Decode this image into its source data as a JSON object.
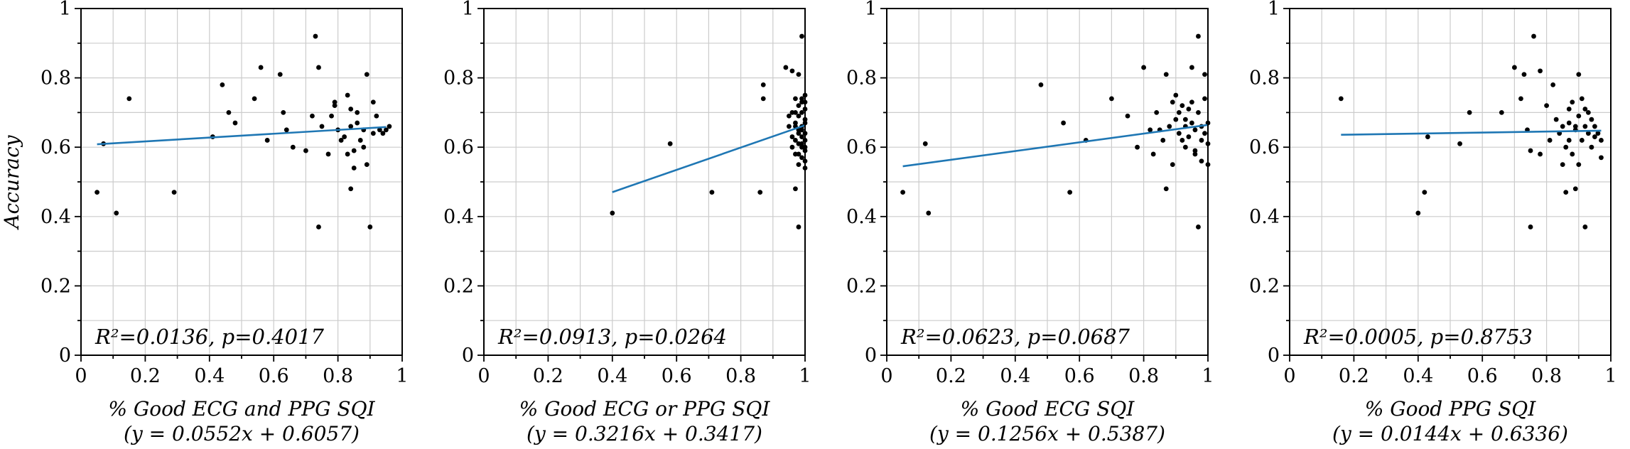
{
  "chart_data": [
    {
      "type": "scatter",
      "title": "",
      "xlabel": "% Good ECG and PPG SQI",
      "equation": "(y = 0.0552x + 0.6057)",
      "ylabel": "Accuracy",
      "annotation": "R²=0.0136, p=0.4017",
      "xlim": [
        0,
        1
      ],
      "ylim": [
        0,
        1
      ],
      "xticks": [
        "0",
        "0.2",
        "0.4",
        "0.6",
        "0.8",
        "1"
      ],
      "yticks": [
        "0",
        "0.2",
        "0.4",
        "0.6",
        "0.8",
        "1"
      ],
      "grid": true,
      "fit": {
        "slope": 0.0552,
        "intercept": 0.6057,
        "x_range": [
          0.05,
          0.95
        ]
      },
      "points": [
        [
          0.05,
          0.47
        ],
        [
          0.07,
          0.61
        ],
        [
          0.11,
          0.41
        ],
        [
          0.15,
          0.74
        ],
        [
          0.29,
          0.47
        ],
        [
          0.41,
          0.63
        ],
        [
          0.44,
          0.78
        ],
        [
          0.46,
          0.7
        ],
        [
          0.48,
          0.67
        ],
        [
          0.54,
          0.74
        ],
        [
          0.56,
          0.83
        ],
        [
          0.58,
          0.62
        ],
        [
          0.62,
          0.81
        ],
        [
          0.63,
          0.7
        ],
        [
          0.64,
          0.65
        ],
        [
          0.66,
          0.6
        ],
        [
          0.7,
          0.59
        ],
        [
          0.72,
          0.69
        ],
        [
          0.73,
          0.92
        ],
        [
          0.74,
          0.83
        ],
        [
          0.74,
          0.37
        ],
        [
          0.75,
          0.66
        ],
        [
          0.77,
          0.58
        ],
        [
          0.78,
          0.69
        ],
        [
          0.79,
          0.72
        ],
        [
          0.79,
          0.73
        ],
        [
          0.8,
          0.65
        ],
        [
          0.81,
          0.62
        ],
        [
          0.82,
          0.63
        ],
        [
          0.83,
          0.58
        ],
        [
          0.83,
          0.75
        ],
        [
          0.84,
          0.71
        ],
        [
          0.84,
          0.66
        ],
        [
          0.84,
          0.48
        ],
        [
          0.85,
          0.59
        ],
        [
          0.85,
          0.54
        ],
        [
          0.86,
          0.7
        ],
        [
          0.86,
          0.67
        ],
        [
          0.87,
          0.62
        ],
        [
          0.88,
          0.6
        ],
        [
          0.88,
          0.65
        ],
        [
          0.89,
          0.81
        ],
        [
          0.89,
          0.55
        ],
        [
          0.9,
          0.37
        ],
        [
          0.91,
          0.64
        ],
        [
          0.91,
          0.73
        ],
        [
          0.92,
          0.69
        ],
        [
          0.93,
          0.65
        ],
        [
          0.94,
          0.64
        ],
        [
          0.95,
          0.65
        ],
        [
          0.96,
          0.66
        ]
      ]
    },
    {
      "type": "scatter",
      "title": "",
      "xlabel": "% Good ECG or PPG SQI",
      "equation": "(y = 0.3216x + 0.3417)",
      "ylabel": "",
      "annotation": "R²=0.0913, p=0.0264",
      "xlim": [
        0,
        1
      ],
      "ylim": [
        0,
        1
      ],
      "xticks": [
        "0",
        "0.2",
        "0.4",
        "0.6",
        "0.8",
        "1"
      ],
      "yticks": [
        "0",
        "0.2",
        "0.4",
        "0.6",
        "0.8",
        "1"
      ],
      "grid": true,
      "fit": {
        "slope": 0.3216,
        "intercept": 0.3417,
        "x_range": [
          0.4,
          1.0
        ]
      },
      "points": [
        [
          0.4,
          0.41
        ],
        [
          0.58,
          0.61
        ],
        [
          0.71,
          0.47
        ],
        [
          0.86,
          0.47
        ],
        [
          0.87,
          0.78
        ],
        [
          0.87,
          0.74
        ],
        [
          0.94,
          0.83
        ],
        [
          0.95,
          0.69
        ],
        [
          0.95,
          0.66
        ],
        [
          0.96,
          0.82
        ],
        [
          0.96,
          0.63
        ],
        [
          0.96,
          0.6
        ],
        [
          0.97,
          0.48
        ],
        [
          0.97,
          0.74
        ],
        [
          0.97,
          0.7
        ],
        [
          0.97,
          0.67
        ],
        [
          0.97,
          0.62
        ],
        [
          0.97,
          0.58
        ],
        [
          0.98,
          0.72
        ],
        [
          0.98,
          0.69
        ],
        [
          0.98,
          0.65
        ],
        [
          0.98,
          0.61
        ],
        [
          0.98,
          0.55
        ],
        [
          0.98,
          0.81
        ],
        [
          0.98,
          0.37
        ],
        [
          0.99,
          0.73
        ],
        [
          0.99,
          0.7
        ],
        [
          0.99,
          0.66
        ],
        [
          0.99,
          0.63
        ],
        [
          0.99,
          0.6
        ],
        [
          0.99,
          0.57
        ],
        [
          0.99,
          0.92
        ],
        [
          1.0,
          0.75
        ],
        [
          1.0,
          0.71
        ],
        [
          1.0,
          0.68
        ],
        [
          1.0,
          0.64
        ],
        [
          1.0,
          0.62
        ],
        [
          1.0,
          0.59
        ],
        [
          1.0,
          0.56
        ],
        [
          1.0,
          0.54
        ],
        [
          1.0,
          0.67
        ],
        [
          0.99,
          0.65
        ],
        [
          0.98,
          0.64
        ],
        [
          0.97,
          0.66
        ],
        [
          0.96,
          0.7
        ],
        [
          0.99,
          0.74
        ],
        [
          1.0,
          0.6
        ],
        [
          0.98,
          0.58
        ],
        [
          0.99,
          0.61
        ],
        [
          1.0,
          0.73
        ]
      ]
    },
    {
      "type": "scatter",
      "title": "",
      "xlabel": "% Good ECG SQI",
      "equation": "(y = 0.1256x + 0.5387)",
      "ylabel": "",
      "annotation": "R²=0.0623, p=0.0687",
      "xlim": [
        0,
        1
      ],
      "ylim": [
        0,
        1
      ],
      "xticks": [
        "0",
        "0.2",
        "0.4",
        "0.6",
        "0.8",
        "1"
      ],
      "yticks": [
        "0",
        "0.2",
        "0.4",
        "0.6",
        "0.8",
        "1"
      ],
      "grid": true,
      "fit": {
        "slope": 0.1256,
        "intercept": 0.5387,
        "x_range": [
          0.05,
          1.0
        ]
      },
      "points": [
        [
          0.05,
          0.47
        ],
        [
          0.12,
          0.61
        ],
        [
          0.13,
          0.41
        ],
        [
          0.48,
          0.78
        ],
        [
          0.55,
          0.67
        ],
        [
          0.57,
          0.47
        ],
        [
          0.62,
          0.62
        ],
        [
          0.7,
          0.74
        ],
        [
          0.75,
          0.69
        ],
        [
          0.78,
          0.6
        ],
        [
          0.8,
          0.83
        ],
        [
          0.82,
          0.65
        ],
        [
          0.83,
          0.58
        ],
        [
          0.84,
          0.7
        ],
        [
          0.85,
          0.65
        ],
        [
          0.86,
          0.62
        ],
        [
          0.87,
          0.81
        ],
        [
          0.87,
          0.48
        ],
        [
          0.88,
          0.66
        ],
        [
          0.89,
          0.73
        ],
        [
          0.89,
          0.55
        ],
        [
          0.9,
          0.68
        ],
        [
          0.9,
          0.75
        ],
        [
          0.91,
          0.64
        ],
        [
          0.91,
          0.7
        ],
        [
          0.92,
          0.62
        ],
        [
          0.92,
          0.72
        ],
        [
          0.93,
          0.66
        ],
        [
          0.93,
          0.6
        ],
        [
          0.94,
          0.71
        ],
        [
          0.94,
          0.63
        ],
        [
          0.95,
          0.83
        ],
        [
          0.95,
          0.67
        ],
        [
          0.96,
          0.59
        ],
        [
          0.96,
          0.65
        ],
        [
          0.96,
          0.58
        ],
        [
          0.97,
          0.92
        ],
        [
          0.97,
          0.37
        ],
        [
          0.97,
          0.7
        ],
        [
          0.98,
          0.62
        ],
        [
          0.98,
          0.66
        ],
        [
          0.98,
          0.56
        ],
        [
          0.99,
          0.81
        ],
        [
          0.99,
          0.64
        ],
        [
          0.99,
          0.74
        ],
        [
          1.0,
          0.61
        ],
        [
          1.0,
          0.67
        ],
        [
          1.0,
          0.55
        ],
        [
          0.95,
          0.73
        ],
        [
          0.93,
          0.68
        ]
      ]
    },
    {
      "type": "scatter",
      "title": "",
      "xlabel": "% Good PPG SQI",
      "equation": "(y = 0.0144x + 0.6336)",
      "ylabel": "",
      "annotation": "R²=0.0005, p=0.8753",
      "xlim": [
        0,
        1
      ],
      "ylim": [
        0,
        1
      ],
      "xticks": [
        "0",
        "0.2",
        "0.4",
        "0.6",
        "0.8",
        "1"
      ],
      "yticks": [
        "0",
        "0.2",
        "0.4",
        "0.6",
        "0.8",
        "1"
      ],
      "grid": true,
      "fit": {
        "slope": 0.0144,
        "intercept": 0.6336,
        "x_range": [
          0.16,
          0.97
        ]
      },
      "points": [
        [
          0.16,
          0.74
        ],
        [
          0.4,
          0.41
        ],
        [
          0.42,
          0.47
        ],
        [
          0.43,
          0.63
        ],
        [
          0.53,
          0.61
        ],
        [
          0.56,
          0.7
        ],
        [
          0.66,
          0.7
        ],
        [
          0.7,
          0.83
        ],
        [
          0.72,
          0.74
        ],
        [
          0.73,
          0.81
        ],
        [
          0.74,
          0.65
        ],
        [
          0.75,
          0.59
        ],
        [
          0.75,
          0.37
        ],
        [
          0.76,
          0.92
        ],
        [
          0.78,
          0.82
        ],
        [
          0.78,
          0.58
        ],
        [
          0.8,
          0.72
        ],
        [
          0.81,
          0.62
        ],
        [
          0.82,
          0.78
        ],
        [
          0.83,
          0.68
        ],
        [
          0.84,
          0.64
        ],
        [
          0.85,
          0.66
        ],
        [
          0.85,
          0.55
        ],
        [
          0.86,
          0.6
        ],
        [
          0.86,
          0.47
        ],
        [
          0.87,
          0.71
        ],
        [
          0.87,
          0.67
        ],
        [
          0.87,
          0.62
        ],
        [
          0.88,
          0.73
        ],
        [
          0.88,
          0.58
        ],
        [
          0.89,
          0.65
        ],
        [
          0.89,
          0.48
        ],
        [
          0.9,
          0.81
        ],
        [
          0.9,
          0.69
        ],
        [
          0.9,
          0.55
        ],
        [
          0.91,
          0.74
        ],
        [
          0.91,
          0.62
        ],
        [
          0.92,
          0.37
        ],
        [
          0.92,
          0.71
        ],
        [
          0.92,
          0.66
        ],
        [
          0.93,
          0.64
        ],
        [
          0.94,
          0.68
        ],
        [
          0.94,
          0.6
        ],
        [
          0.95,
          0.66
        ],
        [
          0.95,
          0.63
        ],
        [
          0.96,
          0.64
        ],
        [
          0.97,
          0.57
        ],
        [
          0.97,
          0.62
        ],
        [
          0.93,
          0.7
        ],
        [
          0.89,
          0.66
        ]
      ]
    }
  ]
}
